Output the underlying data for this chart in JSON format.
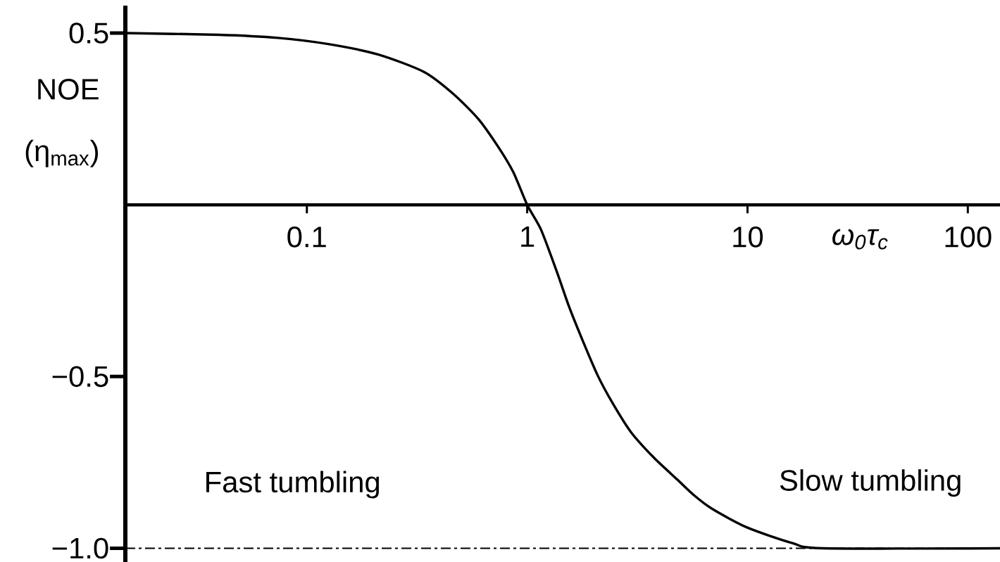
{
  "chart_data": {
    "type": "line",
    "xlabel": "ω$_{0}$τ$_{c}$",
    "ylabel": "NOE (η$_{max}$)",
    "annotations": [
      "Fast tumbling",
      "Slow tumbling"
    ],
    "x": [
      0.015,
      0.04,
      0.074,
      0.125,
      0.21,
      0.34,
      0.46,
      0.6,
      0.74,
      0.865,
      1.0,
      1.155,
      1.36,
      1.55,
      1.78,
      2.09,
      2.45,
      2.96,
      3.77,
      4.8,
      5.7,
      6.9,
      10,
      16,
      22,
      140
    ],
    "values": [
      0.5,
      0.495,
      0.486,
      0.468,
      0.438,
      0.387,
      0.324,
      0.25,
      0.168,
      0.095,
      0.0,
      -0.072,
      -0.193,
      -0.297,
      -0.393,
      -0.497,
      -0.579,
      -0.662,
      -0.737,
      -0.8,
      -0.845,
      -0.885,
      -0.94,
      -0.985,
      -1.0,
      -1.0
    ],
    "color": "#000000",
    "marker": "none",
    "log": "x",
    "xlim": [
      0.015,
      140
    ],
    "ylim": [
      -1.04,
      0.58
    ],
    "xticks": [
      0.1,
      1,
      10,
      100
    ],
    "yticks": [
      0.5,
      {
        "value": -0.5,
        "label": "−0.5"
      },
      {
        "value": -1.0,
        "label": "−1.0"
      }
    ],
    "ref_lines": [
      {
        "axis": "y",
        "value": -1.0,
        "color": "#000000",
        "line_style": "dashed"
      }
    ]
  }
}
